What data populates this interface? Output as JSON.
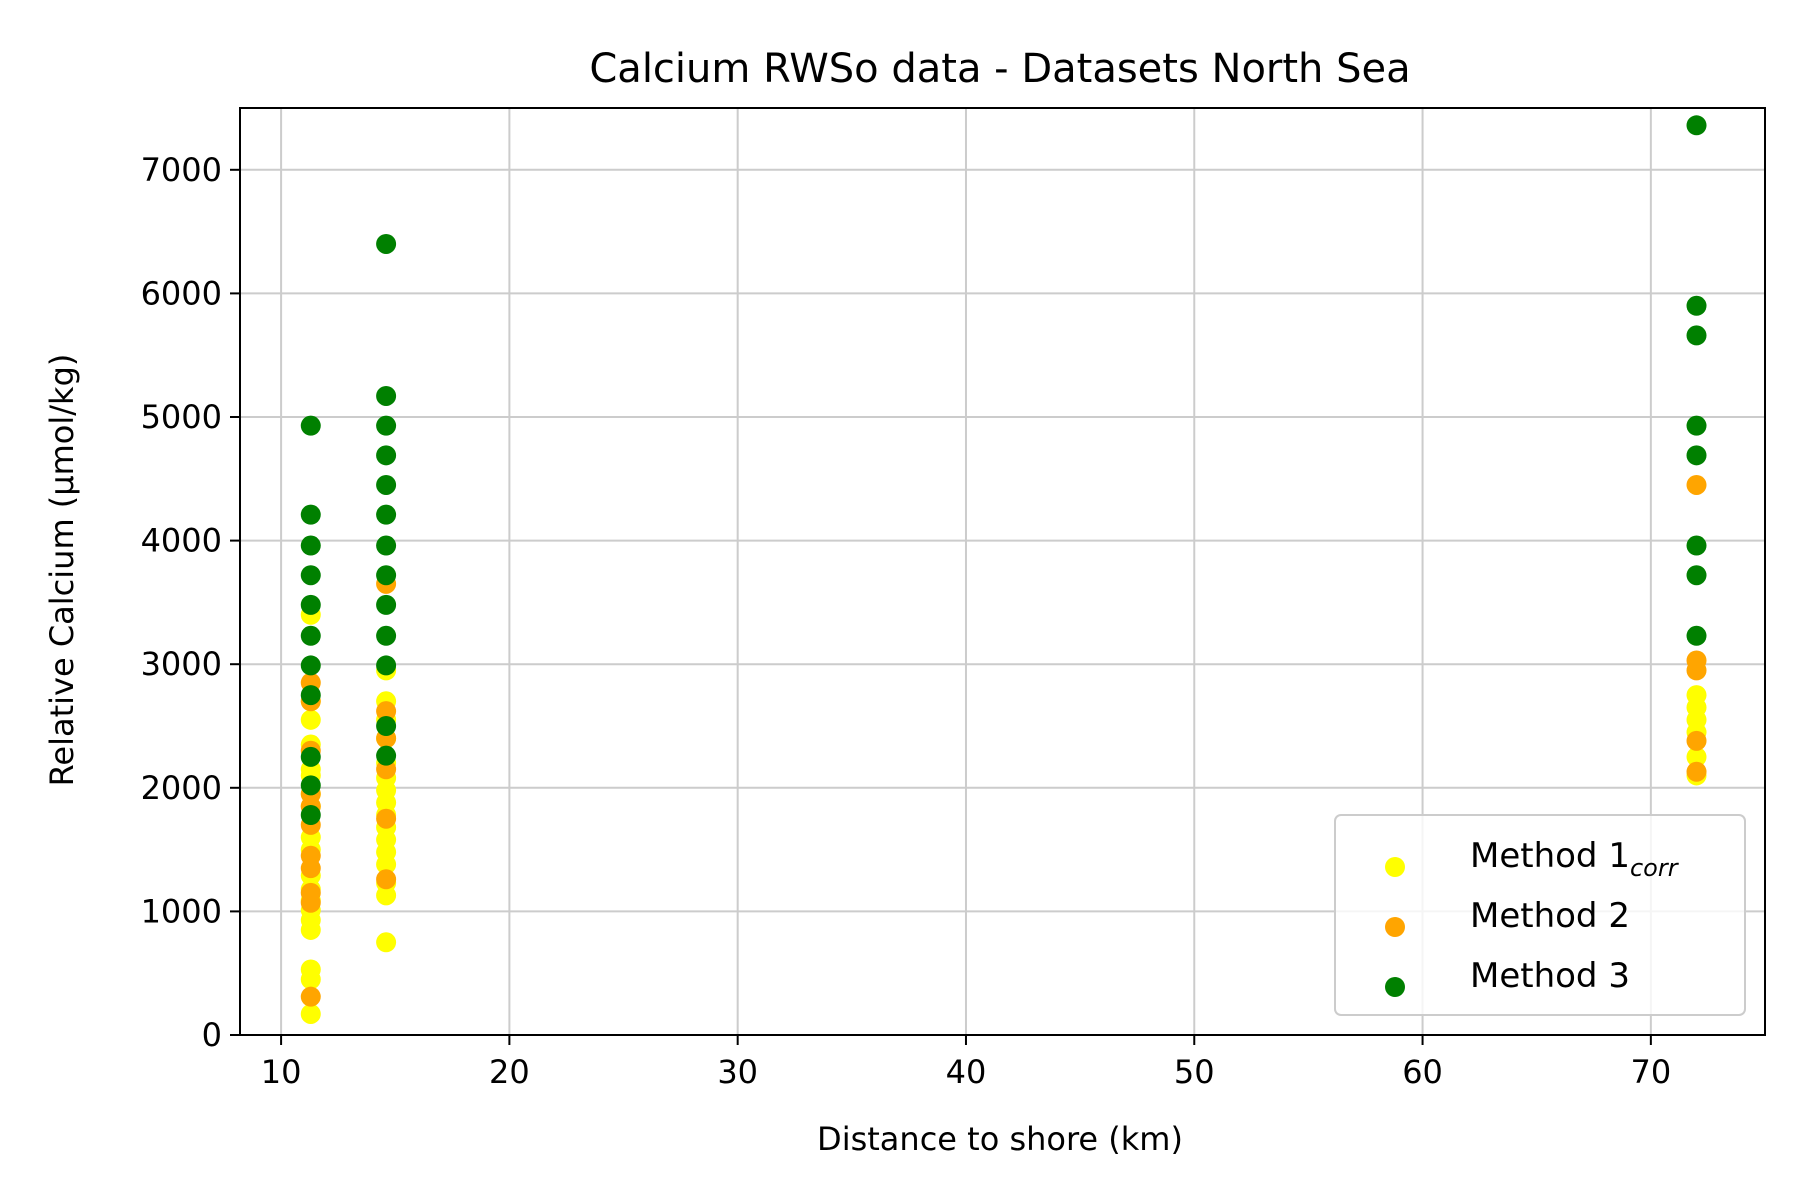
{
  "chart_data": {
    "type": "scatter",
    "title": "Calcium RWSo data - Datasets North Sea",
    "xlabel": "Distance to shore (km)",
    "ylabel": "Relative Calcium (µmol/kg)",
    "xlim": [
      8.2,
      75
    ],
    "ylim": [
      0,
      7500
    ],
    "xticks": [
      10,
      20,
      30,
      40,
      50,
      60,
      70
    ],
    "yticks": [
      0,
      1000,
      2000,
      3000,
      4000,
      5000,
      6000,
      7000
    ],
    "grid": true,
    "legend_position": "lower-right",
    "series": [
      {
        "name": "Method 1",
        "name_subscript": "corr",
        "color": "#ffff00",
        "points": [
          [
            11.3,
            170
          ],
          [
            11.3,
            450
          ],
          [
            11.3,
            530
          ],
          [
            11.3,
            850
          ],
          [
            11.3,
            930
          ],
          [
            11.3,
            1010
          ],
          [
            11.3,
            1090
          ],
          [
            11.3,
            1180
          ],
          [
            11.3,
            1290
          ],
          [
            11.3,
            1500
          ],
          [
            11.3,
            1600
          ],
          [
            11.3,
            1850
          ],
          [
            11.3,
            1950
          ],
          [
            11.3,
            2100
          ],
          [
            11.3,
            2150
          ],
          [
            11.3,
            2350
          ],
          [
            11.3,
            2550
          ],
          [
            11.3,
            2700
          ],
          [
            11.3,
            3400
          ],
          [
            14.6,
            750
          ],
          [
            14.6,
            1130
          ],
          [
            14.6,
            1230
          ],
          [
            14.6,
            1380
          ],
          [
            14.6,
            1480
          ],
          [
            14.6,
            1580
          ],
          [
            14.6,
            1680
          ],
          [
            14.6,
            1780
          ],
          [
            14.6,
            1880
          ],
          [
            14.6,
            1980
          ],
          [
            14.6,
            2080
          ],
          [
            14.6,
            2200
          ],
          [
            14.6,
            2400
          ],
          [
            14.6,
            2550
          ],
          [
            14.6,
            2700
          ],
          [
            14.6,
            2950
          ],
          [
            72,
            2100
          ],
          [
            72,
            2250
          ],
          [
            72,
            2450
          ],
          [
            72,
            2550
          ],
          [
            72,
            2650
          ],
          [
            72,
            2750
          ]
        ]
      },
      {
        "name": "Method 2",
        "color": "#ffa500",
        "points": [
          [
            11.3,
            310
          ],
          [
            11.3,
            1070
          ],
          [
            11.3,
            1150
          ],
          [
            11.3,
            1350
          ],
          [
            11.3,
            1450
          ],
          [
            11.3,
            1700
          ],
          [
            11.3,
            1850
          ],
          [
            11.3,
            1950
          ],
          [
            11.3,
            2300
          ],
          [
            11.3,
            2700
          ],
          [
            11.3,
            2850
          ],
          [
            14.6,
            1260
          ],
          [
            14.6,
            1750
          ],
          [
            14.6,
            2150
          ],
          [
            14.6,
            2400
          ],
          [
            14.6,
            2620
          ],
          [
            14.6,
            3650
          ],
          [
            72,
            2130
          ],
          [
            72,
            2380
          ],
          [
            72,
            2950
          ],
          [
            72,
            3030
          ],
          [
            72,
            4450
          ]
        ]
      },
      {
        "name": "Method 3",
        "color": "#008000",
        "points": [
          [
            11.3,
            1780
          ],
          [
            11.3,
            2020
          ],
          [
            11.3,
            2250
          ],
          [
            11.3,
            2750
          ],
          [
            11.3,
            2990
          ],
          [
            11.3,
            3230
          ],
          [
            11.3,
            3480
          ],
          [
            11.3,
            3720
          ],
          [
            11.3,
            3960
          ],
          [
            11.3,
            4210
          ],
          [
            11.3,
            4930
          ],
          [
            14.6,
            2260
          ],
          [
            14.6,
            2500
          ],
          [
            14.6,
            2990
          ],
          [
            14.6,
            3230
          ],
          [
            14.6,
            3480
          ],
          [
            14.6,
            3720
          ],
          [
            14.6,
            3960
          ],
          [
            14.6,
            4210
          ],
          [
            14.6,
            4450
          ],
          [
            14.6,
            4690
          ],
          [
            14.6,
            4930
          ],
          [
            14.6,
            5170
          ],
          [
            14.6,
            6400
          ],
          [
            72,
            3230
          ],
          [
            72,
            3720
          ],
          [
            72,
            3960
          ],
          [
            72,
            4690
          ],
          [
            72,
            4930
          ],
          [
            72,
            5660
          ],
          [
            72,
            5900
          ],
          [
            72,
            7360
          ]
        ]
      }
    ]
  }
}
